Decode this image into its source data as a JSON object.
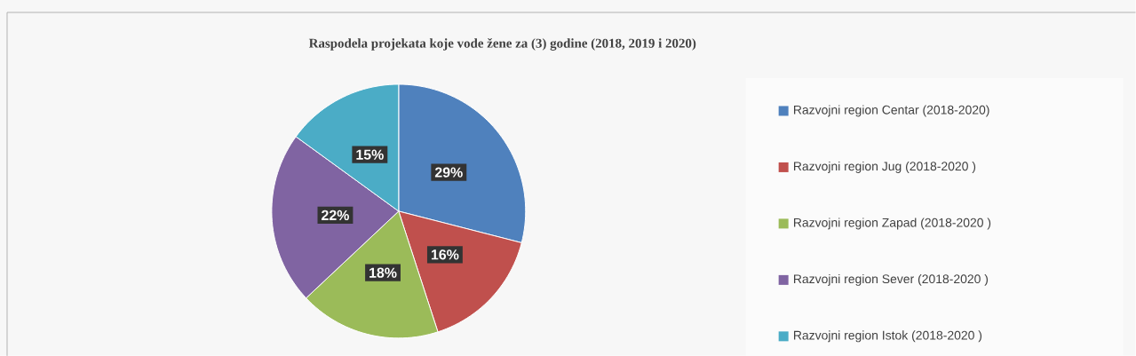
{
  "chart_data": {
    "type": "pie",
    "title": "Raspodela projekata koje vode žene za (3) godine (2018, 2019 i 2020)",
    "categories": [
      "Razvojni region Centar (2018-2020)",
      "Razvojni region Jug (2018-2020 )",
      "Razvojni region Zapad (2018-2020 )",
      "Razvojni region Sever (2018-2020 )",
      "Razvojni region Istok (2018-2020 )"
    ],
    "values": [
      29,
      16,
      18,
      22,
      15
    ],
    "colors": [
      "#4f81bd",
      "#c0504d",
      "#9bbb59",
      "#8064a2",
      "#4bacc6"
    ],
    "value_labels": [
      "29%",
      "16%",
      "18%",
      "22%",
      "15%"
    ],
    "legend": "right"
  }
}
